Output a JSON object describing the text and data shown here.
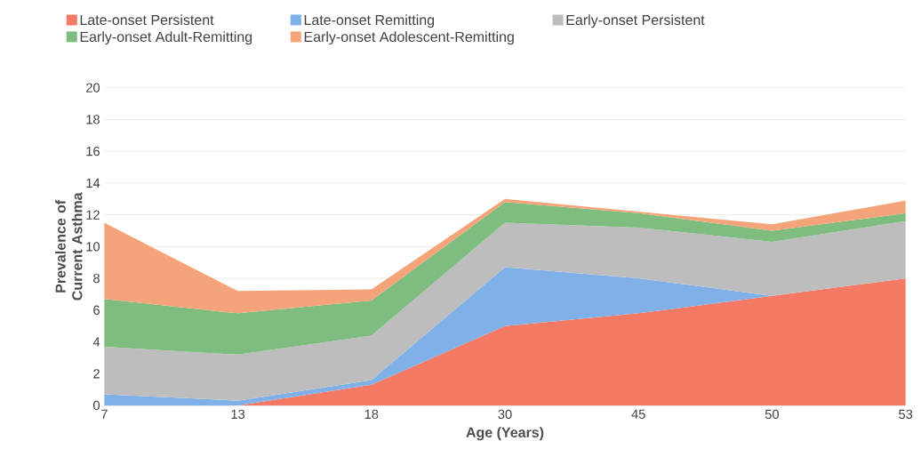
{
  "chart_data": {
    "type": "area",
    "stacked": true,
    "xlabel": "Age (Years)",
    "ylabel": "Prevalence of Current Asthma",
    "categories": [
      "7",
      "13",
      "18",
      "30",
      "45",
      "50",
      "53"
    ],
    "ylim": [
      0,
      20
    ],
    "yticks": [
      0,
      2,
      4,
      6,
      8,
      10,
      12,
      14,
      16,
      18,
      20
    ],
    "grid": "y",
    "legend": "top",
    "series": [
      {
        "name": "Late-onset Persistent",
        "color": "#f47a66",
        "values": [
          0,
          0,
          1.3,
          5.0,
          5.8,
          6.9,
          8.0
        ]
      },
      {
        "name": "Late-onset Remitting",
        "color": "#7fb0e8",
        "values": [
          0.7,
          0.3,
          0.3,
          3.7,
          2.2,
          0,
          0
        ]
      },
      {
        "name": "Early-onset Persistent",
        "color": "#bdbdbd",
        "values": [
          3.0,
          2.9,
          2.8,
          2.8,
          3.2,
          3.4,
          3.6
        ]
      },
      {
        "name": "Early-onset Adult-Remitting",
        "color": "#7fbc7f",
        "values": [
          3.0,
          2.6,
          2.2,
          1.3,
          0.9,
          0.7,
          0.5
        ]
      },
      {
        "name": "Early-onset Adolescent-Remitting",
        "color": "#f5a47a",
        "values": [
          4.8,
          1.4,
          0.7,
          0.2,
          0.1,
          0.4,
          0.8
        ]
      }
    ]
  }
}
